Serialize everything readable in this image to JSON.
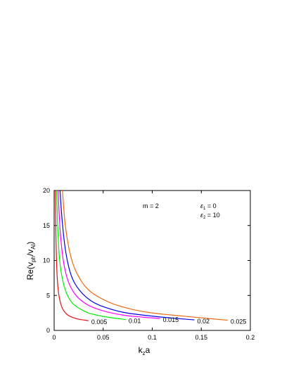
{
  "chart_data": {
    "type": "line",
    "title": "",
    "xlim": [
      0,
      0.2
    ],
    "ylim": [
      0,
      20
    ],
    "xticks": [
      "0",
      "0.05",
      "0.1",
      "0.15",
      "0.2"
    ],
    "yticks": [
      "0",
      "5",
      "10",
      "15",
      "20"
    ],
    "xlabel": {
      "main": "k",
      "sub": "z",
      "tail": "a"
    },
    "ylabel": {
      "pre": "Re(v",
      "sub1": "ph",
      "mid": "/v",
      "sub2": "Al",
      "post": ")"
    },
    "grid": false,
    "annotations": {
      "m": "m = 2",
      "eps1": {
        "symbol": "ε",
        "sub": "1",
        "rest": " = 0"
      },
      "eps2": {
        "symbol": "ε",
        "sub": "2",
        "rest": " = 10"
      }
    },
    "series": [
      {
        "label": "0.005",
        "color": "#e01010",
        "points": [
          [
            0.0012,
            20
          ],
          [
            0.0018,
            13.5
          ],
          [
            0.0028,
            8.5
          ],
          [
            0.004,
            6.0
          ],
          [
            0.006,
            4.2
          ],
          [
            0.009,
            3.0
          ],
          [
            0.013,
            2.3
          ],
          [
            0.018,
            1.9
          ],
          [
            0.025,
            1.6
          ],
          [
            0.035,
            1.4
          ]
        ]
      },
      {
        "label": "0.01",
        "color": "#00ee00",
        "points": [
          [
            0.0025,
            20
          ],
          [
            0.004,
            13.5
          ],
          [
            0.006,
            9.5
          ],
          [
            0.009,
            7.0
          ],
          [
            0.013,
            5.2
          ],
          [
            0.018,
            4.0
          ],
          [
            0.025,
            3.2
          ],
          [
            0.035,
            2.5
          ],
          [
            0.05,
            2.0
          ],
          [
            0.07,
            1.6
          ],
          [
            0.073,
            1.55
          ]
        ]
      },
      {
        "label": "0.015",
        "color": "#ff00ff",
        "points": [
          [
            0.004,
            20
          ],
          [
            0.006,
            14.5
          ],
          [
            0.009,
            10.3
          ],
          [
            0.013,
            7.6
          ],
          [
            0.018,
            5.9
          ],
          [
            0.025,
            4.6
          ],
          [
            0.035,
            3.6
          ],
          [
            0.05,
            2.8
          ],
          [
            0.07,
            2.2
          ],
          [
            0.09,
            1.9
          ],
          [
            0.108,
            1.7
          ]
        ]
      },
      {
        "label": "0.02",
        "color": "#0000ee",
        "points": [
          [
            0.006,
            20
          ],
          [
            0.008,
            16
          ],
          [
            0.011,
            12
          ],
          [
            0.015,
            9.0
          ],
          [
            0.02,
            7.0
          ],
          [
            0.028,
            5.4
          ],
          [
            0.038,
            4.2
          ],
          [
            0.05,
            3.4
          ],
          [
            0.07,
            2.6
          ],
          [
            0.09,
            2.2
          ],
          [
            0.11,
            1.9
          ],
          [
            0.13,
            1.65
          ],
          [
            0.143,
            1.5
          ]
        ]
      },
      {
        "label": "0.025",
        "color": "#ee6a10",
        "points": [
          [
            0.0085,
            20
          ],
          [
            0.011,
            15.5
          ],
          [
            0.015,
            11.8
          ],
          [
            0.02,
            9.2
          ],
          [
            0.027,
            7.2
          ],
          [
            0.035,
            5.8
          ],
          [
            0.045,
            4.8
          ],
          [
            0.06,
            3.8
          ],
          [
            0.08,
            3.0
          ],
          [
            0.1,
            2.5
          ],
          [
            0.12,
            2.2
          ],
          [
            0.15,
            1.8
          ],
          [
            0.177,
            1.45
          ]
        ]
      }
    ]
  }
}
